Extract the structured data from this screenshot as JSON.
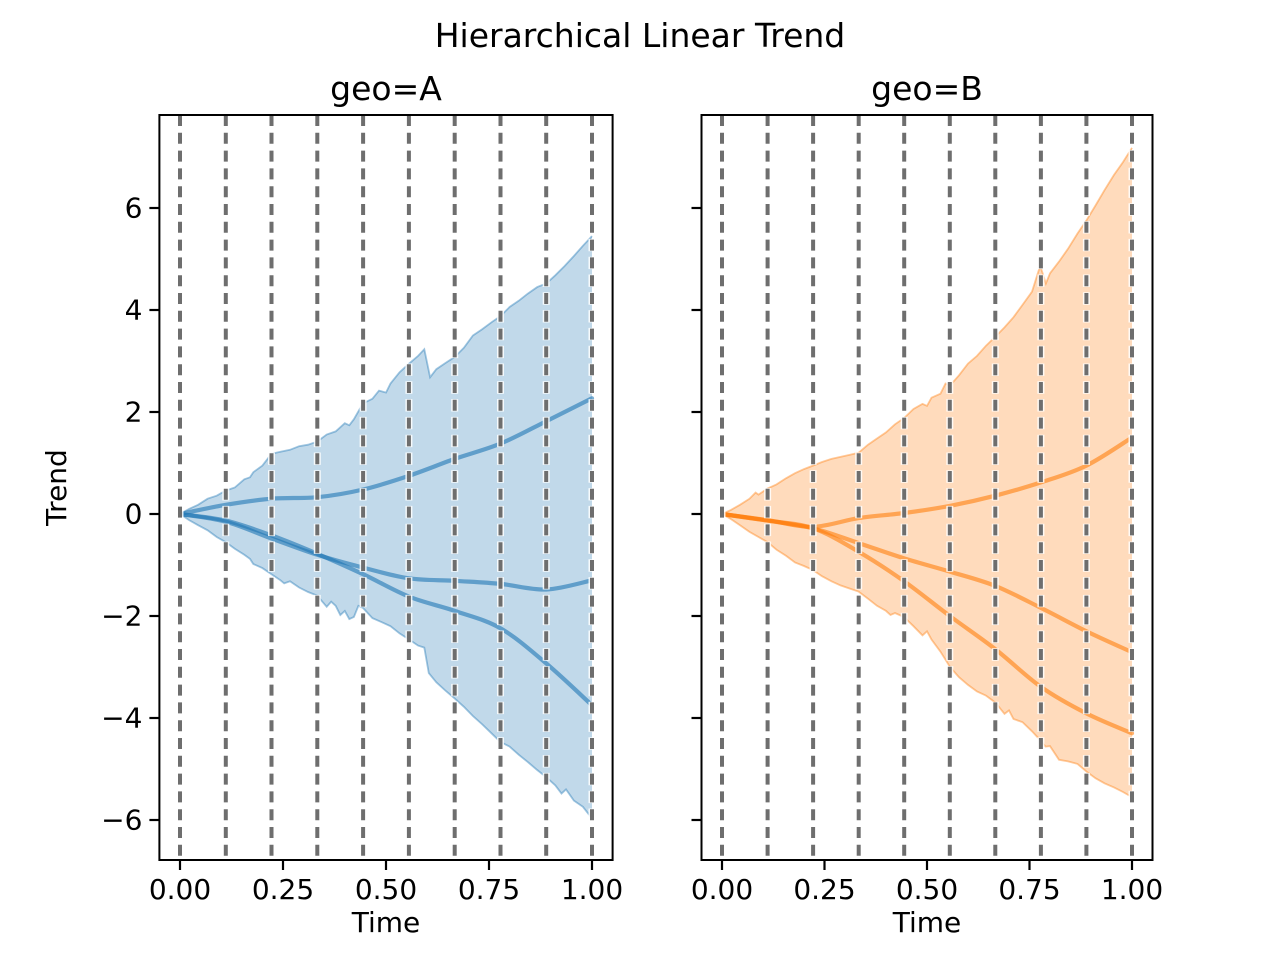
{
  "figure": {
    "suptitle": "Hierarchical Linear Trend",
    "xlabel": "Time",
    "ylabel": "Trend",
    "background": "#ffffff",
    "text_color": "#000000",
    "gridline_color": "#6e6e6e",
    "spine_color": "#000000"
  },
  "chart_data": {
    "type": "area",
    "title": "Hierarchical Linear Trend",
    "xlabel": "Time",
    "ylabel": "Trend",
    "legend": "none",
    "axes": {
      "xlim": [
        -0.05,
        1.05
      ],
      "ylim": [
        -6.784,
        7.824
      ],
      "xticks": [
        0,
        0.25,
        0.5,
        0.75,
        1.0
      ],
      "xtick_labels": [
        "0.00",
        "0.25",
        "0.50",
        "0.75",
        "1.00"
      ],
      "yticks": [
        -6,
        -4,
        -2,
        0,
        2,
        4,
        6
      ],
      "ytick_labels": [
        "−6",
        "−4",
        "−2",
        "0",
        "2",
        "4",
        "6"
      ],
      "grid": "vertical-dashed-changepoints"
    },
    "changepoints": [
      0,
      0.1111,
      0.2222,
      0.3333,
      0.4444,
      0.5556,
      0.6667,
      0.7778,
      0.8889,
      1.0
    ],
    "panels": [
      {
        "id": "A",
        "title": "geo=A",
        "color": "#1f77b4",
        "line_x": [
          0,
          0.1111,
          0.2222,
          0.3333,
          0.4444,
          0.5556,
          0.6667,
          0.7778,
          0.8889,
          1.0
        ],
        "lines": [
          {
            "name": "line1",
            "v": [
              0,
              0.18,
              0.3,
              0.33,
              0.48,
              0.75,
              1.08,
              1.38,
              1.82,
              2.27
            ]
          },
          {
            "name": "line2",
            "v": [
              0,
              -0.15,
              -0.48,
              -0.8,
              -1.05,
              -1.26,
              -1.31,
              -1.37,
              -1.48,
              -1.3
            ]
          },
          {
            "name": "line3",
            "v": [
              0,
              -0.13,
              -0.42,
              -0.78,
              -1.18,
              -1.62,
              -1.9,
              -2.24,
              -2.93,
              -3.75
            ]
          }
        ],
        "band_upper": {
          "t": [
            0,
            0.022,
            0.044,
            0.067,
            0.089,
            0.111,
            0.133,
            0.156,
            0.17,
            0.178,
            0.2,
            0.222,
            0.244,
            0.267,
            0.289,
            0.311,
            0.333,
            0.356,
            0.378,
            0.4,
            0.411,
            0.422,
            0.444,
            0.467,
            0.483,
            0.5,
            0.511,
            0.533,
            0.556,
            0.578,
            0.593,
            0.607,
            0.622,
            0.644,
            0.667,
            0.689,
            0.711,
            0.733,
            0.756,
            0.778,
            0.8,
            0.822,
            0.844,
            0.867,
            0.889,
            0.911,
            0.933,
            0.956,
            0.978,
            1.0
          ],
          "v": [
            0,
            0.1,
            0.18,
            0.3,
            0.36,
            0.46,
            0.52,
            0.68,
            0.72,
            0.82,
            0.95,
            1.18,
            1.22,
            1.26,
            1.33,
            1.36,
            1.42,
            1.56,
            1.62,
            1.78,
            1.74,
            1.86,
            2.17,
            2.26,
            2.42,
            2.38,
            2.56,
            2.78,
            2.95,
            3.1,
            3.23,
            2.68,
            2.84,
            2.96,
            3.08,
            3.26,
            3.5,
            3.62,
            3.76,
            3.88,
            4.06,
            4.18,
            4.32,
            4.45,
            4.52,
            4.68,
            4.86,
            5.06,
            5.26,
            5.45
          ]
        },
        "band_lower": {
          "t": [
            0,
            0.022,
            0.044,
            0.067,
            0.089,
            0.111,
            0.133,
            0.156,
            0.17,
            0.178,
            0.2,
            0.222,
            0.244,
            0.253,
            0.267,
            0.289,
            0.311,
            0.333,
            0.356,
            0.367,
            0.378,
            0.389,
            0.4,
            0.411,
            0.422,
            0.433,
            0.444,
            0.467,
            0.489,
            0.511,
            0.533,
            0.556,
            0.578,
            0.593,
            0.604,
            0.622,
            0.644,
            0.667,
            0.689,
            0.711,
            0.733,
            0.756,
            0.778,
            0.8,
            0.822,
            0.844,
            0.867,
            0.889,
            0.911,
            0.926,
            0.937,
            0.956,
            0.978,
            1.0
          ],
          "v": [
            0,
            -0.12,
            -0.22,
            -0.32,
            -0.45,
            -0.55,
            -0.68,
            -0.8,
            -0.88,
            -0.98,
            -1.06,
            -1.18,
            -1.3,
            -1.36,
            -1.32,
            -1.44,
            -1.53,
            -1.6,
            -1.82,
            -1.72,
            -1.8,
            -1.98,
            -1.9,
            -2.06,
            -2.02,
            -1.8,
            -1.84,
            -2.04,
            -2.12,
            -2.2,
            -2.34,
            -2.46,
            -2.58,
            -2.62,
            -3.12,
            -3.3,
            -3.46,
            -3.62,
            -3.78,
            -3.96,
            -4.12,
            -4.3,
            -4.47,
            -4.56,
            -4.72,
            -4.86,
            -5.02,
            -5.16,
            -5.32,
            -5.48,
            -5.4,
            -5.62,
            -5.74,
            -5.97
          ]
        }
      },
      {
        "id": "B",
        "title": "geo=B",
        "color": "#ff7f0e",
        "line_x": [
          0,
          0.1111,
          0.2222,
          0.3333,
          0.4444,
          0.5556,
          0.6667,
          0.7778,
          0.8889,
          1.0
        ],
        "lines": [
          {
            "name": "line1",
            "v": [
              0,
              -0.12,
              -0.25,
              -0.08,
              0.02,
              0.16,
              0.36,
              0.62,
              0.95,
              1.5
            ]
          },
          {
            "name": "line2",
            "v": [
              0,
              -0.13,
              -0.28,
              -0.57,
              -0.87,
              -1.13,
              -1.41,
              -1.84,
              -2.3,
              -2.71
            ]
          },
          {
            "name": "line3",
            "v": [
              0,
              -0.13,
              -0.28,
              -0.74,
              -1.32,
              -2.0,
              -2.65,
              -3.39,
              -3.91,
              -4.3
            ]
          }
        ],
        "band_upper": {
          "t": [
            0,
            0.022,
            0.044,
            0.067,
            0.082,
            0.089,
            0.111,
            0.133,
            0.156,
            0.178,
            0.2,
            0.222,
            0.244,
            0.267,
            0.289,
            0.311,
            0.333,
            0.356,
            0.378,
            0.4,
            0.422,
            0.444,
            0.467,
            0.489,
            0.5,
            0.511,
            0.533,
            0.545,
            0.556,
            0.578,
            0.6,
            0.622,
            0.644,
            0.667,
            0.689,
            0.711,
            0.733,
            0.756,
            0.776,
            0.79,
            0.8,
            0.822,
            0.844,
            0.867,
            0.889,
            0.911,
            0.933,
            0.956,
            0.978,
            1.0
          ],
          "v": [
            0,
            0.08,
            0.18,
            0.3,
            0.42,
            0.38,
            0.5,
            0.58,
            0.7,
            0.8,
            0.88,
            0.95,
            1.02,
            1.08,
            1.12,
            1.16,
            1.2,
            1.36,
            1.48,
            1.6,
            1.76,
            1.88,
            2.06,
            2.16,
            2.12,
            2.28,
            2.36,
            2.56,
            2.52,
            2.72,
            2.95,
            3.1,
            3.3,
            3.48,
            3.66,
            3.86,
            4.1,
            4.36,
            4.87,
            4.52,
            4.72,
            4.95,
            5.2,
            5.5,
            5.76,
            6.05,
            6.35,
            6.65,
            6.9,
            7.18
          ]
        },
        "band_lower": {
          "t": [
            0,
            0.022,
            0.044,
            0.067,
            0.089,
            0.111,
            0.133,
            0.156,
            0.178,
            0.2,
            0.222,
            0.244,
            0.267,
            0.289,
            0.311,
            0.333,
            0.356,
            0.378,
            0.4,
            0.411,
            0.422,
            0.444,
            0.467,
            0.489,
            0.5,
            0.511,
            0.533,
            0.556,
            0.578,
            0.6,
            0.622,
            0.644,
            0.667,
            0.689,
            0.7,
            0.711,
            0.733,
            0.756,
            0.778,
            0.789,
            0.8,
            0.822,
            0.844,
            0.867,
            0.889,
            0.911,
            0.933,
            0.956,
            0.978,
            1.0
          ],
          "v": [
            0,
            -0.1,
            -0.22,
            -0.35,
            -0.45,
            -0.55,
            -0.7,
            -0.82,
            -0.95,
            -1.02,
            -1.1,
            -1.22,
            -1.32,
            -1.4,
            -1.46,
            -1.52,
            -1.66,
            -1.8,
            -1.9,
            -1.98,
            -1.94,
            -2.02,
            -2.2,
            -2.38,
            -2.3,
            -2.46,
            -2.7,
            -3.0,
            -3.2,
            -3.35,
            -3.48,
            -3.56,
            -3.7,
            -3.92,
            -3.85,
            -4.02,
            -4.08,
            -4.26,
            -4.45,
            -4.56,
            -4.55,
            -4.82,
            -4.85,
            -4.9,
            -5.05,
            -5.18,
            -5.28,
            -5.36,
            -5.45,
            -5.55
          ]
        }
      }
    ]
  }
}
